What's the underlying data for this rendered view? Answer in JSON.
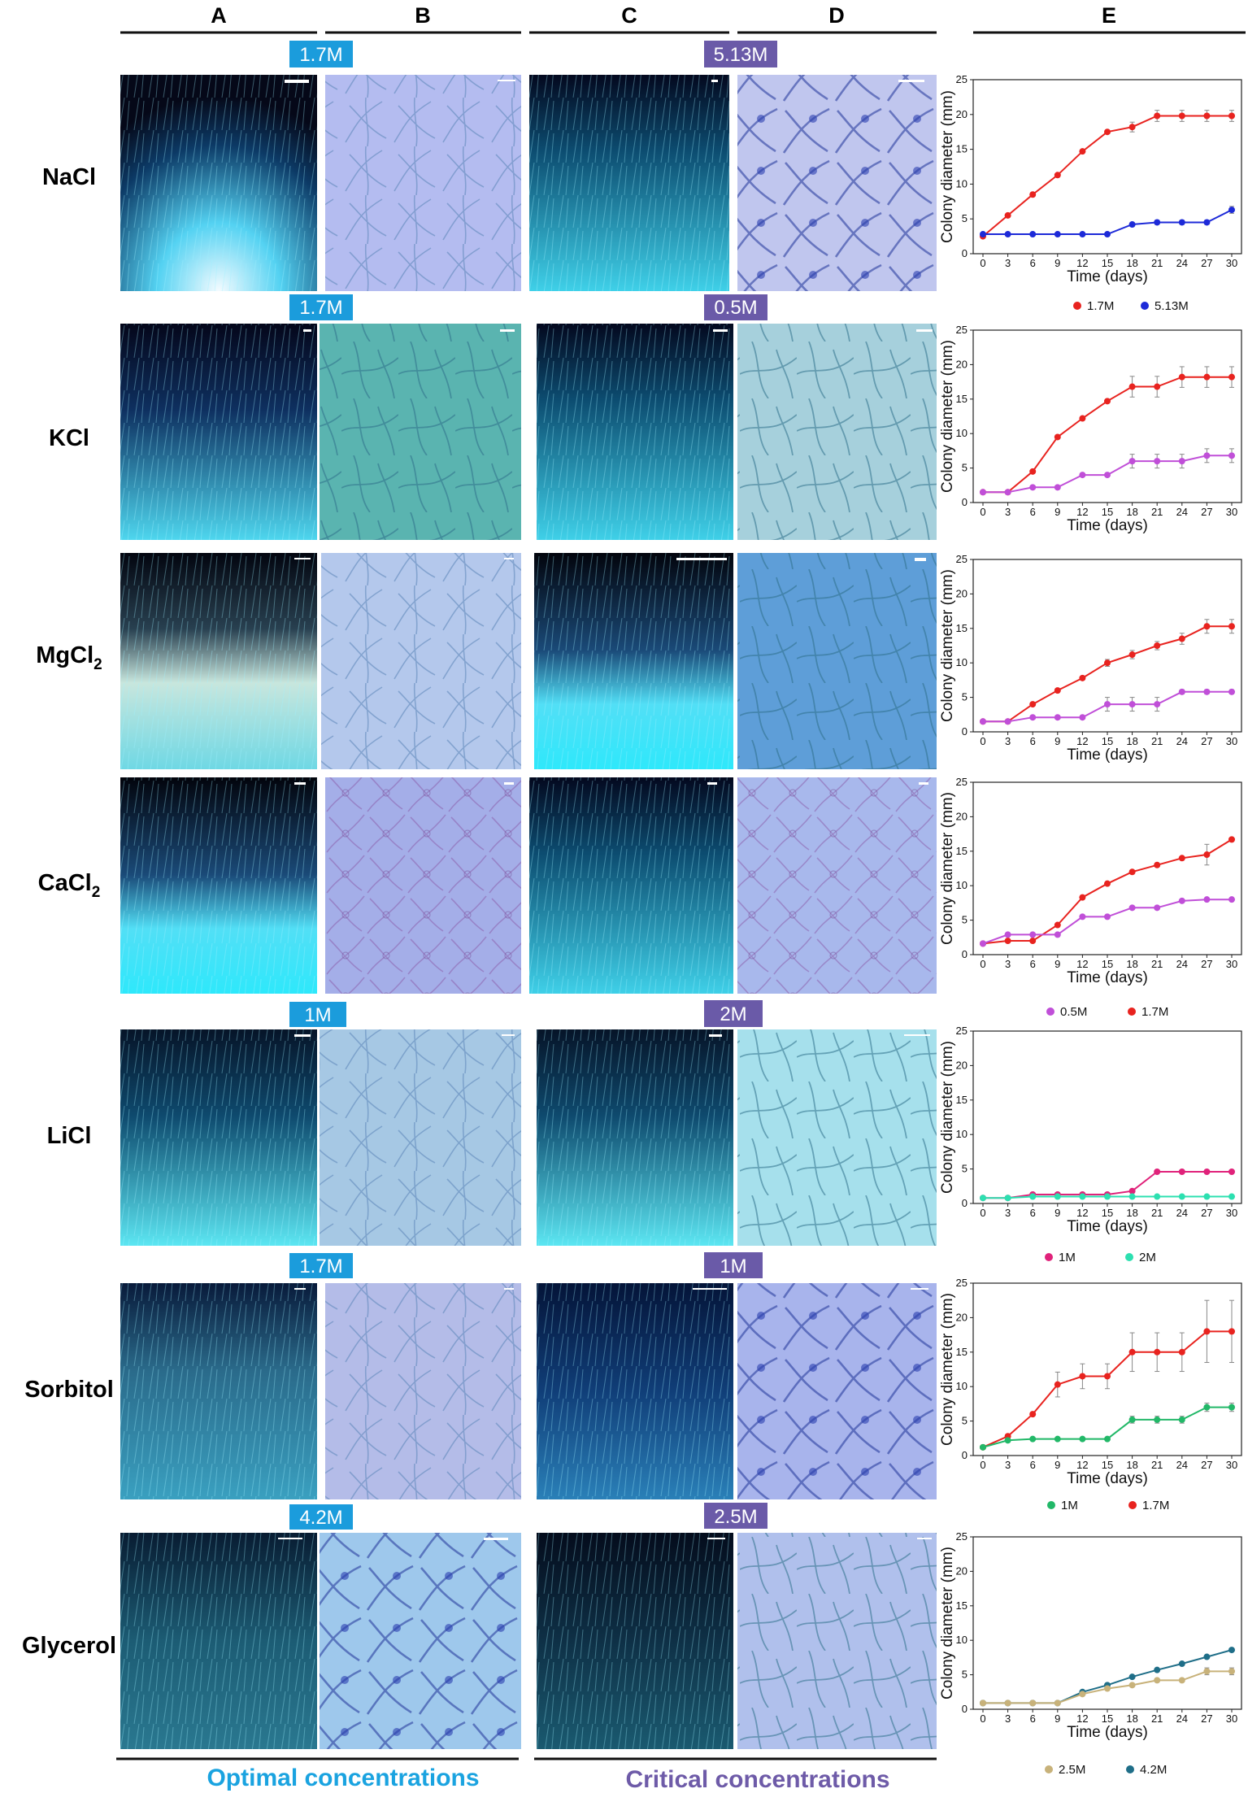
{
  "columns": [
    "A",
    "B",
    "C",
    "D",
    "E"
  ],
  "rows": [
    {
      "label": "NaCl",
      "sub": ""
    },
    {
      "label": "KCl",
      "sub": ""
    },
    {
      "label": "MgCl",
      "sub": "2"
    },
    {
      "label": "CaCl",
      "sub": "2"
    },
    {
      "label": "LiCl",
      "sub": ""
    },
    {
      "label": "Sorbitol",
      "sub": ""
    },
    {
      "label": "Glycerol",
      "sub": ""
    }
  ],
  "concentration_tags": [
    {
      "label": "1.7M",
      "kind": "optimal"
    },
    {
      "label": "5.13M",
      "kind": "critical"
    },
    {
      "label": "1.7M",
      "kind": "optimal"
    },
    {
      "label": "0.5M",
      "kind": "critical"
    },
    {
      "label": "1M",
      "kind": "optimal"
    },
    {
      "label": "2M",
      "kind": "critical"
    },
    {
      "label": "1.7M",
      "kind": "optimal"
    },
    {
      "label": "1M",
      "kind": "critical"
    },
    {
      "label": "4.2M",
      "kind": "optimal"
    },
    {
      "label": "2.5M",
      "kind": "critical"
    }
  ],
  "footer": {
    "optimal": "Optimal concentrations",
    "critical": "Critical concentrations"
  },
  "colors": {
    "optimal_tag": "#1b9cdc",
    "critical_tag": "#6a5aa8",
    "optimal_text": "#1aa3e0",
    "critical_text": "#6e5ba8"
  },
  "legends": [
    {
      "items": [
        {
          "name": "1.7M",
          "color": "#e8231f"
        },
        {
          "name": "5.13M",
          "color": "#1d2ad8"
        }
      ]
    },
    {
      "items": [
        {
          "name": "0.5M",
          "color": "#c04fd8"
        },
        {
          "name": "1.7M",
          "color": "#e8231f"
        }
      ]
    },
    {
      "items": [
        {
          "name": "1M",
          "color": "#e0227a"
        },
        {
          "name": "2M",
          "color": "#2ce0b0"
        }
      ]
    },
    {
      "items": [
        {
          "name": "1M",
          "color": "#22b868"
        },
        {
          "name": "1.7M",
          "color": "#e8231f"
        }
      ]
    },
    {
      "items": [
        {
          "name": "2.5M",
          "color": "#c8b27a"
        },
        {
          "name": "4.2M",
          "color": "#1f6e88"
        }
      ]
    }
  ],
  "chart_data": [
    {
      "type": "line",
      "panel": "NaCl",
      "xlabel": "Time (days)",
      "ylabel": "Colony diameter (mm)",
      "x": [
        0,
        3,
        6,
        9,
        12,
        15,
        18,
        21,
        24,
        27,
        30
      ],
      "xlim": [
        0,
        30
      ],
      "ylim": [
        0,
        25
      ],
      "yticks": [
        0,
        5,
        10,
        15,
        20,
        25
      ],
      "series": [
        {
          "name": "1.7M",
          "color": "#e8231f",
          "values": [
            2.5,
            5.5,
            8.5,
            11.3,
            14.7,
            17.5,
            18.2,
            19.8,
            19.8,
            19.8,
            19.8
          ],
          "err": [
            0,
            0,
            0,
            0,
            0,
            0,
            0.7,
            0.8,
            0.8,
            0.8,
            0.8
          ]
        },
        {
          "name": "5.13M",
          "color": "#1d2ad8",
          "values": [
            2.8,
            2.8,
            2.8,
            2.8,
            2.8,
            2.8,
            4.2,
            4.5,
            4.5,
            4.5,
            6.3
          ],
          "err": [
            0,
            0,
            0,
            0,
            0,
            0,
            0.3,
            0.3,
            0.3,
            0.3,
            0.5
          ]
        }
      ]
    },
    {
      "type": "line",
      "panel": "KCl",
      "xlabel": "Time (days)",
      "ylabel": "Colony diameter (mm)",
      "x": [
        0,
        3,
        6,
        9,
        12,
        15,
        18,
        21,
        24,
        27,
        30
      ],
      "xlim": [
        0,
        30
      ],
      "ylim": [
        0,
        25
      ],
      "yticks": [
        0,
        5,
        10,
        15,
        20,
        25
      ],
      "series": [
        {
          "name": "1.7M",
          "color": "#e8231f",
          "values": [
            1.5,
            1.5,
            4.5,
            9.5,
            12.2,
            14.7,
            16.8,
            16.8,
            18.2,
            18.2,
            18.2
          ],
          "err": [
            0,
            0,
            0,
            0,
            0,
            0,
            1.5,
            1.5,
            1.5,
            1.5,
            1.5
          ]
        },
        {
          "name": "0.5M",
          "color": "#c04fd8",
          "values": [
            1.5,
            1.5,
            2.2,
            2.2,
            4.0,
            4.0,
            6.0,
            6.0,
            6.0,
            6.8,
            6.8
          ],
          "err": [
            0,
            0,
            0,
            0,
            0,
            0,
            1.0,
            1.0,
            1.0,
            1.0,
            1.0
          ]
        }
      ]
    },
    {
      "type": "line",
      "panel": "MgCl2",
      "xlabel": "Time (days)",
      "ylabel": "Colony diameter (mm)",
      "x": [
        0,
        3,
        6,
        9,
        12,
        15,
        18,
        21,
        24,
        27,
        30
      ],
      "xlim": [
        0,
        30
      ],
      "ylim": [
        0,
        25
      ],
      "yticks": [
        0,
        5,
        10,
        15,
        20,
        25
      ],
      "series": [
        {
          "name": "1.7M",
          "color": "#e8231f",
          "values": [
            1.5,
            1.5,
            4.0,
            6.0,
            7.8,
            10.0,
            11.2,
            12.5,
            13.5,
            15.3,
            15.3
          ],
          "err": [
            0,
            0,
            0,
            0,
            0,
            0.5,
            0.6,
            0.6,
            0.8,
            1.0,
            1.0
          ]
        },
        {
          "name": "0.5M",
          "color": "#c04fd8",
          "values": [
            1.5,
            1.5,
            2.1,
            2.1,
            2.1,
            4.0,
            4.0,
            4.0,
            5.8,
            5.8,
            5.8
          ],
          "err": [
            0,
            0,
            0,
            0,
            0,
            1.0,
            1.0,
            1.0,
            0.3,
            0.3,
            0.3
          ]
        }
      ]
    },
    {
      "type": "line",
      "panel": "CaCl2",
      "xlabel": "Time (days)",
      "ylabel": "Colony diameter (mm)",
      "x": [
        0,
        3,
        6,
        9,
        12,
        15,
        18,
        21,
        24,
        27,
        30
      ],
      "xlim": [
        0,
        30
      ],
      "ylim": [
        0,
        25
      ],
      "yticks": [
        0,
        5,
        10,
        15,
        20,
        25
      ],
      "series": [
        {
          "name": "1.7M",
          "color": "#e8231f",
          "values": [
            1.6,
            2.0,
            2.0,
            4.3,
            8.3,
            10.3,
            12.0,
            13.0,
            14.0,
            14.5,
            16.7
          ],
          "err": [
            0,
            0,
            0,
            0,
            0,
            0,
            0,
            0,
            0,
            1.5,
            0
          ]
        },
        {
          "name": "0.5M",
          "color": "#c04fd8",
          "values": [
            1.6,
            2.9,
            2.9,
            2.9,
            5.5,
            5.5,
            6.8,
            6.8,
            7.8,
            8.0,
            8.0
          ],
          "err": [
            0,
            0,
            0,
            0,
            0,
            0,
            0,
            0,
            0,
            0,
            0
          ]
        }
      ]
    },
    {
      "type": "line",
      "panel": "LiCl",
      "xlabel": "Time (days)",
      "ylabel": "Colony diameter (mm)",
      "x": [
        0,
        3,
        6,
        9,
        12,
        15,
        18,
        21,
        24,
        27,
        30
      ],
      "xlim": [
        0,
        30
      ],
      "ylim": [
        0,
        25
      ],
      "yticks": [
        0,
        5,
        10,
        15,
        20,
        25
      ],
      "series": [
        {
          "name": "1M",
          "color": "#e0227a",
          "values": [
            0.8,
            0.8,
            1.3,
            1.3,
            1.3,
            1.3,
            1.8,
            4.6,
            4.6,
            4.6,
            4.6
          ],
          "err": [
            0,
            0,
            0,
            0,
            0,
            0,
            0,
            0,
            0,
            0,
            0
          ]
        },
        {
          "name": "2M",
          "color": "#2ce0b0",
          "values": [
            0.8,
            0.8,
            1.0,
            1.0,
            1.0,
            1.0,
            1.0,
            1.0,
            1.0,
            1.0,
            1.0
          ],
          "err": [
            0,
            0,
            0,
            0,
            0,
            0,
            0,
            0,
            0,
            0,
            0
          ]
        }
      ]
    },
    {
      "type": "line",
      "panel": "Sorbitol",
      "xlabel": "Time (days)",
      "ylabel": "Colony diameter (mm)",
      "x": [
        0,
        3,
        6,
        9,
        12,
        15,
        18,
        21,
        24,
        27,
        30
      ],
      "xlim": [
        0,
        30
      ],
      "ylim": [
        0,
        25
      ],
      "yticks": [
        0,
        5,
        10,
        15,
        20,
        25
      ],
      "series": [
        {
          "name": "1.7M",
          "color": "#e8231f",
          "values": [
            1.2,
            2.8,
            6.0,
            10.3,
            11.5,
            11.5,
            15.0,
            15.0,
            15.0,
            18.0,
            18.0
          ],
          "err": [
            0,
            0,
            0,
            1.8,
            1.8,
            1.8,
            2.8,
            2.8,
            2.8,
            4.5,
            4.5
          ]
        },
        {
          "name": "1M",
          "color": "#22b868",
          "values": [
            1.2,
            2.2,
            2.4,
            2.4,
            2.4,
            2.4,
            5.2,
            5.2,
            5.2,
            7.0,
            7.0
          ],
          "err": [
            0,
            0,
            0,
            0,
            0,
            0,
            0.5,
            0.5,
            0.5,
            0.6,
            0.6
          ]
        }
      ]
    },
    {
      "type": "line",
      "panel": "Glycerol",
      "xlabel": "Time (days)",
      "ylabel": "Colony diameter (mm)",
      "x": [
        0,
        3,
        6,
        9,
        12,
        15,
        18,
        21,
        24,
        27,
        30
      ],
      "xlim": [
        0,
        30
      ],
      "ylim": [
        0,
        25
      ],
      "yticks": [
        0,
        5,
        10,
        15,
        20,
        25
      ],
      "series": [
        {
          "name": "4.2M",
          "color": "#1f6e88",
          "values": [
            0.9,
            0.9,
            0.9,
            0.9,
            2.5,
            3.5,
            4.7,
            5.7,
            6.6,
            7.6,
            8.6
          ],
          "err": [
            0,
            0,
            0,
            0,
            0,
            0,
            0,
            0,
            0,
            0,
            0
          ]
        },
        {
          "name": "2.5M",
          "color": "#c8b27a",
          "values": [
            0.9,
            0.9,
            0.9,
            0.9,
            2.2,
            3.0,
            3.5,
            4.2,
            4.2,
            5.5,
            5.5
          ],
          "err": [
            0,
            0,
            0,
            0,
            0,
            0,
            0,
            0,
            0,
            0.5,
            0.5
          ]
        }
      ]
    }
  ]
}
